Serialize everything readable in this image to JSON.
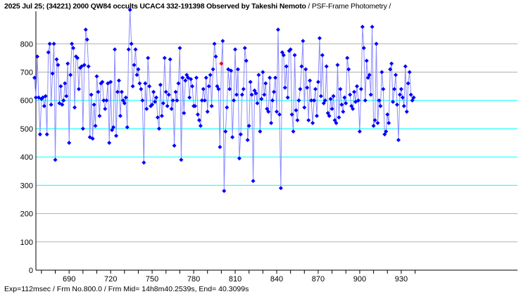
{
  "chart_data": {
    "type": "line",
    "title": "2025 Jul 25; (34221) 2000 QW84 occults UCAC4 332-191398 Observed by Takeshi Nemoto",
    "subtitle": "/ PSF-Frame Photometry /",
    "footer": "Exp=112msec / Frm No.800.0 / Frm Mid= 14h8m40.2539s,  End= 40.3099s",
    "xlabel": "",
    "ylabel": "",
    "xlim": [
      666,
      1014
    ],
    "ylim": [
      0,
      915
    ],
    "x_ticks_minor_step": 10,
    "x_tick_labels": [
      "690",
      "720",
      "750",
      "780",
      "810",
      "840",
      "870",
      "900",
      "930"
    ],
    "y_tick_labels": [
      "0",
      "100",
      "200",
      "300",
      "400",
      "500",
      "600",
      "700",
      "800"
    ],
    "grid_cyan": [
      300,
      400,
      500,
      600
    ],
    "grid_gray": [
      100,
      200,
      700,
      800
    ],
    "x_start": 665,
    "x_step": 1,
    "values": [
      680,
      610,
      755,
      610,
      480,
      605,
      610,
      580,
      615,
      480,
      770,
      800,
      585,
      695,
      800,
      390,
      745,
      725,
      590,
      650,
      585,
      600,
      660,
      615,
      730,
      450,
      690,
      800,
      785,
      575,
      755,
      750,
      640,
      715,
      720,
      500,
      725,
      850,
      815,
      720,
      470,
      620,
      465,
      585,
      510,
      685,
      630,
      545,
      660,
      665,
      600,
      570,
      600,
      660,
      450,
      665,
      495,
      505,
      780,
      475,
      630,
      670,
      545,
      630,
      600,
      590,
      610,
      505,
      780,
      920,
      800,
      650,
      725,
      780,
      690,
      710,
      660,
      640,
      600,
      380,
      660,
      570,
      750,
      650,
      580,
      585,
      630,
      595,
      610,
      540,
      500,
      655,
      545,
      590,
      750,
      630,
      580,
      620,
      745,
      570,
      600,
      440,
      630,
      600,
      660,
      785,
      390,
      680,
      555,
      670,
      690,
      680,
      610,
      675,
      650,
      580,
      580,
      680,
      550,
      530,
      510,
      600,
      640,
      600,
      680,
      560,
      650,
      690,
      580,
      710,
      800,
      755,
      650,
      640,
      435,
      730,
      810,
      280,
      490,
      575,
      710,
      640,
      705,
      470,
      600,
      780,
      620,
      710,
      395,
      480,
      620,
      640,
      785,
      740,
      460,
      510,
      665,
      620,
      315,
      635,
      625,
      590,
      690,
      490,
      605,
      700,
      620,
      660,
      570,
      560,
      680,
      520,
      600,
      630,
      680,
      560,
      850,
      550,
      290,
      770,
      760,
      645,
      720,
      610,
      775,
      780,
      550,
      490,
      760,
      565,
      530,
      600,
      640,
      720,
      810,
      575,
      710,
      645,
      530,
      670,
      600,
      520,
      600,
      640,
      545,
      665,
      820,
      615,
      760,
      590,
      600,
      720,
      555,
      545,
      605,
      570,
      615,
      530,
      520,
      725,
      540,
      640,
      585,
      560,
      610,
      590,
      750,
      710,
      620,
      580,
      570,
      630,
      595,
      650,
      600,
      490,
      640,
      860,
      785,
      600,
      740,
      680,
      690,
      620,
      860,
      510,
      530,
      800,
      520,
      600,
      580,
      700,
      640,
      480,
      490,
      550,
      520,
      710,
      730,
      595,
      640,
      690,
      585,
      460,
      620,
      640,
      610,
      580,
      720,
      560,
      660,
      700,
      620,
      600,
      610
    ],
    "highlight_frame": 800,
    "colors": {
      "line": "#8c8cff",
      "point": "#0000ff",
      "highlight": "#ff0000",
      "grid_cyan": "#00ffff",
      "grid_gray": "#b0b0b0"
    }
  }
}
